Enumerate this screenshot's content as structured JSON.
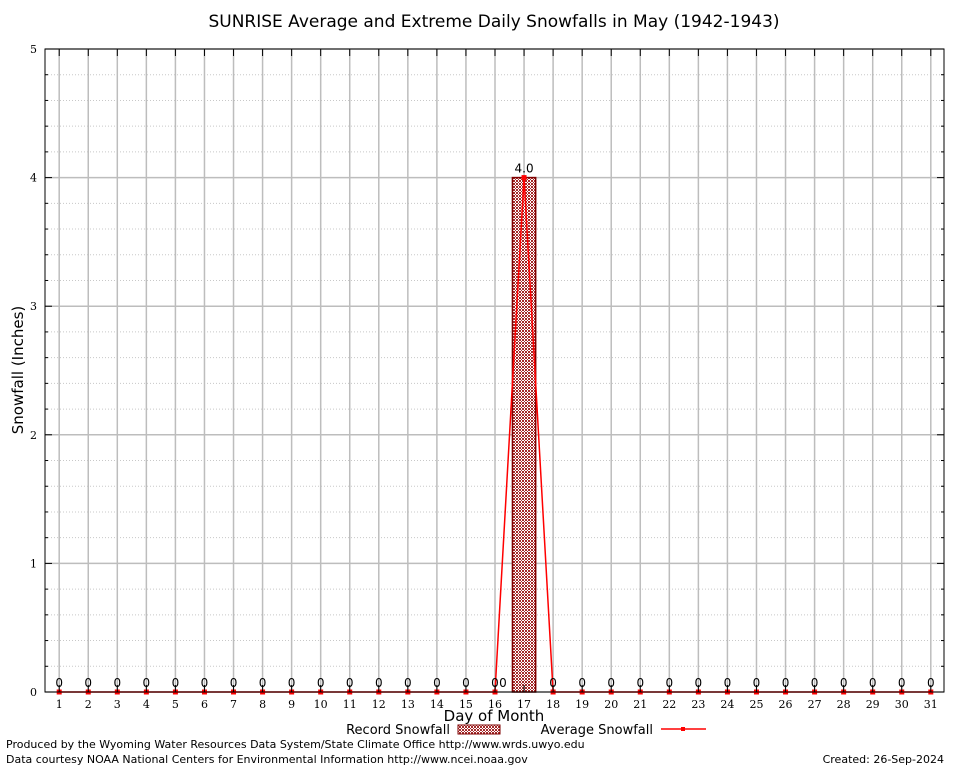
{
  "chart_data": {
    "type": "bar",
    "title": "SUNRISE Average and Extreme Daily Snowfalls in May (1942-1943)",
    "xlabel": "Day of Month",
    "ylabel": "Snowfall (Inches)",
    "ylim": [
      0,
      5
    ],
    "yticks": [
      0,
      1,
      2,
      3,
      4,
      5
    ],
    "categories": [
      1,
      2,
      3,
      4,
      5,
      6,
      7,
      8,
      9,
      10,
      11,
      12,
      13,
      14,
      15,
      16,
      17,
      18,
      19,
      20,
      21,
      22,
      23,
      24,
      25,
      26,
      27,
      28,
      29,
      30,
      31
    ],
    "series": [
      {
        "name": "Record Snowfall",
        "type": "bar",
        "values": [
          0,
          0,
          0,
          0,
          0,
          0,
          0,
          0,
          0,
          0,
          0,
          0,
          0,
          0,
          0,
          0,
          4.0,
          0,
          0,
          0,
          0,
          0,
          0,
          0,
          0,
          0,
          0,
          0,
          0,
          0,
          0
        ],
        "labels": [
          "0",
          "0",
          "0",
          "0",
          "0",
          "0",
          "0",
          "0",
          "0",
          "0",
          "0",
          "0",
          "0",
          "0",
          "0",
          "0",
          "4.0",
          "0",
          "0",
          "0",
          "0",
          "0",
          "0",
          "0",
          "0",
          "0",
          "0",
          "0",
          "0",
          "0",
          "0"
        ]
      },
      {
        "name": "Average Snowfall",
        "type": "line",
        "values": [
          0,
          0,
          0,
          0,
          0,
          0,
          0,
          0,
          0,
          0,
          0,
          0,
          0,
          0,
          0,
          0,
          4.0,
          0,
          0,
          0,
          0,
          0,
          0,
          0,
          0,
          0,
          0,
          0,
          0,
          0,
          0
        ],
        "labels": [
          "0",
          "0",
          "0",
          "0",
          "0",
          "0",
          "0",
          "0",
          "0",
          "0",
          "0",
          "0",
          "0",
          "0",
          "0",
          "0",
          "",
          "0",
          "0",
          "0",
          "0",
          "0",
          "0",
          "0",
          "0",
          "0",
          "0",
          "0",
          "0",
          "0",
          "0"
        ]
      }
    ],
    "grid": true,
    "legend": "bottom",
    "colors": {
      "bar_fill": "#a52a2a",
      "bar_edge": "#7f0000",
      "line": "#ff0000",
      "grid": "#c0c0c0"
    }
  },
  "footer": {
    "line1": "Produced by the Wyoming Water Resources Data System/State Climate Office http://www.wrds.uwyo.edu",
    "line2": "Data courtesy NOAA National Centers for Environmental Information http://www.ncei.noaa.gov",
    "created": "Created:  26-Sep-2024"
  }
}
